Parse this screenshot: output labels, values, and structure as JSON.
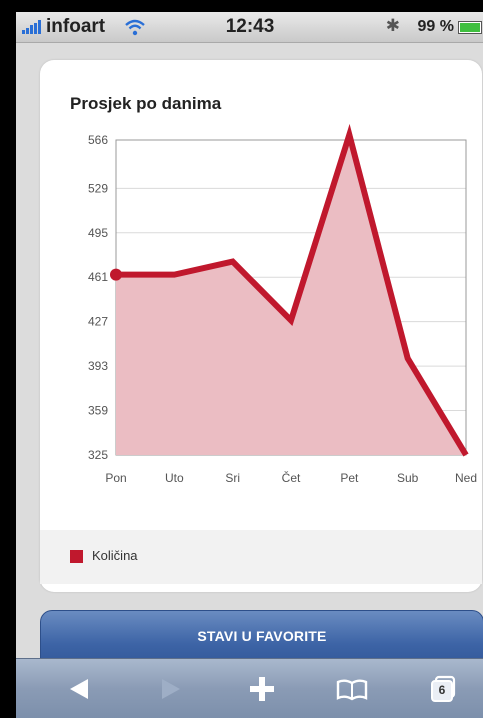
{
  "status_bar": {
    "carrier": "infoart",
    "time": "12:43",
    "battery_percent": "99 %"
  },
  "card": {
    "title": "Prosjek po danima"
  },
  "chart_data": {
    "type": "area",
    "title": "Prosjek po danima",
    "categories": [
      "Pon",
      "Uto",
      "Sri",
      "Čet",
      "Pet",
      "Sub",
      "Ned"
    ],
    "y_ticks": [
      "566",
      "529",
      "495",
      "461",
      "427",
      "393",
      "359",
      "325"
    ],
    "ylim": [
      325,
      566
    ],
    "series": [
      {
        "name": "Količina",
        "values": [
          463,
          463,
          473,
          428,
          570,
          399,
          325
        ]
      }
    ],
    "grid": "horizontal",
    "legend_position": "bottom-left",
    "colors": {
      "line": "#c0182d",
      "fill": "#ebbdc3"
    }
  },
  "legend": {
    "label": "Količina"
  },
  "favorites_button": {
    "label": "STAVI U FAVORITE"
  },
  "toolbar": {
    "tabs_count": "6",
    "icons": [
      "back-icon",
      "forward-icon",
      "add-icon",
      "bookmarks-icon",
      "tabs-icon"
    ]
  }
}
